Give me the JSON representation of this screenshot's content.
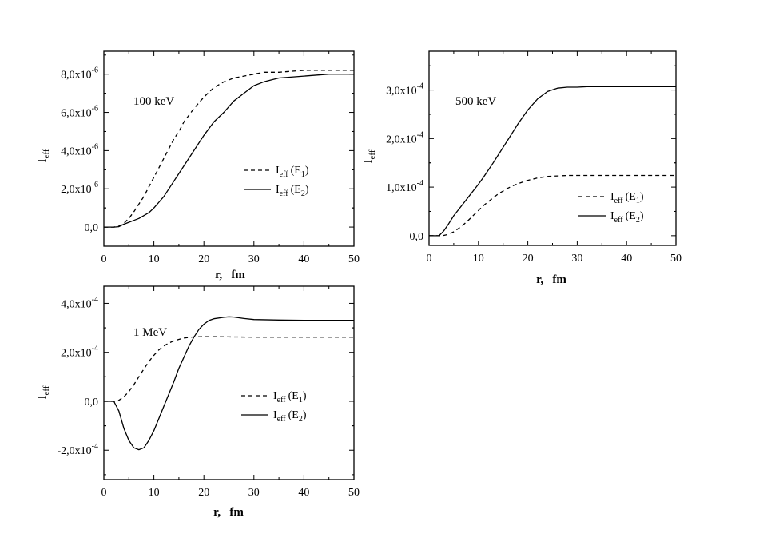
{
  "chart_data": [
    {
      "type": "line",
      "annotation": "100 keV",
      "xlabel": "r,   fm",
      "ylabel": "I",
      "ylabel_sub": "eff",
      "xlim": [
        0,
        50
      ],
      "ylim": [
        -1e-06,
        9.2e-06
      ],
      "xticks": [
        0,
        10,
        20,
        30,
        40,
        50
      ],
      "xtick_labels": [
        "0",
        "10",
        "20",
        "30",
        "40",
        "50"
      ],
      "yticks": [
        0,
        2e-06,
        4e-06,
        6e-06,
        8e-06
      ],
      "ytick_labels": [
        {
          "m": "0,0",
          "e": ""
        },
        {
          "m": "2,0x10",
          "e": "-6"
        },
        {
          "m": "4,0x10",
          "e": "-6"
        },
        {
          "m": "6,0x10",
          "e": "-6"
        },
        {
          "m": "8,0x10",
          "e": "-6"
        }
      ],
      "legend_position": "center-right",
      "series": [
        {
          "label": "I",
          "label_sub": "eff",
          "label_tail": "(E",
          "label_tail_sub": "1",
          "label_end": ")",
          "style": "dashed",
          "x": [
            0,
            2,
            3,
            4,
            5,
            6,
            7,
            8,
            9,
            10,
            11,
            12,
            13,
            14,
            15,
            16,
            18,
            20,
            22,
            24,
            26,
            28,
            30,
            32,
            35,
            40,
            45,
            50
          ],
          "y": [
            0,
            0,
            5e-08,
            2e-07,
            4.5e-07,
            8e-07,
            1.2e-06,
            1.6e-06,
            2.1e-06,
            2.6e-06,
            3.1e-06,
            3.6e-06,
            4.1e-06,
            4.6e-06,
            5e-06,
            5.5e-06,
            6.2e-06,
            6.8e-06,
            7.3e-06,
            7.6e-06,
            7.8e-06,
            7.9e-06,
            8e-06,
            8.1e-06,
            8.1e-06,
            8.2e-06,
            8.2e-06,
            8.2e-06
          ]
        },
        {
          "label": "I",
          "label_sub": "eff",
          "label_tail": "(E",
          "label_tail_sub": "2",
          "label_end": ")",
          "style": "solid",
          "x": [
            0,
            2,
            3,
            4,
            5,
            6,
            7,
            8,
            9,
            10,
            11,
            12,
            13,
            14,
            15,
            16,
            18,
            20,
            22,
            24,
            26,
            28,
            30,
            32,
            35,
            40,
            45,
            50
          ],
          "y": [
            0,
            0,
            2e-08,
            1.5e-07,
            2.5e-07,
            3.5e-07,
            4.5e-07,
            6e-07,
            7.5e-07,
            1e-06,
            1.3e-06,
            1.6e-06,
            2e-06,
            2.4e-06,
            2.8e-06,
            3.2e-06,
            4e-06,
            4.8e-06,
            5.5e-06,
            6e-06,
            6.6e-06,
            7e-06,
            7.4e-06,
            7.6e-06,
            7.8e-06,
            7.9e-06,
            8e-06,
            8e-06
          ]
        }
      ]
    },
    {
      "type": "line",
      "annotation": "500 keV",
      "xlabel": "r,   fm",
      "ylabel": "I",
      "ylabel_sub": "eff",
      "xlim": [
        0,
        50
      ],
      "ylim": [
        -2e-05,
        0.00038
      ],
      "xticks": [
        0,
        10,
        20,
        30,
        40,
        50
      ],
      "xtick_labels": [
        "0",
        "10",
        "20",
        "30",
        "40",
        "50"
      ],
      "yticks": [
        0,
        0.0001,
        0.0002,
        0.0003
      ],
      "ytick_labels": [
        {
          "m": "0,0",
          "e": ""
        },
        {
          "m": "1,0x10",
          "e": "-4"
        },
        {
          "m": "2,0x10",
          "e": "-4"
        },
        {
          "m": "3,0x10",
          "e": "-4"
        }
      ],
      "legend_position": "lower-right",
      "series": [
        {
          "label": "I",
          "label_sub": "eff",
          "label_tail": "(E",
          "label_tail_sub": "1",
          "label_end": ")",
          "style": "dashed",
          "x": [
            0,
            2,
            3,
            4,
            5,
            6,
            7,
            8,
            9,
            10,
            11,
            12,
            13,
            14,
            15,
            16,
            17,
            18,
            20,
            22,
            24,
            26,
            28,
            30,
            35,
            40,
            45,
            50
          ],
          "y": [
            0,
            0,
            5e-07,
            3e-06,
            8e-06,
            1.5e-05,
            2.3e-05,
            3.2e-05,
            4.2e-05,
            5.2e-05,
            6.2e-05,
            7e-05,
            7.8e-05,
            8.6e-05,
            9.2e-05,
            9.8e-05,
            0.000103,
            0.000107,
            0.000114,
            0.000119,
            0.000122,
            0.000123,
            0.000124,
            0.000124,
            0.000124,
            0.000124,
            0.000124,
            0.000124
          ]
        },
        {
          "label": "I",
          "label_sub": "eff",
          "label_tail": "(E",
          "label_tail_sub": "2",
          "label_end": ")",
          "style": "solid",
          "x": [
            0,
            2,
            3,
            4,
            5,
            6,
            7,
            8,
            9,
            10,
            11,
            12,
            13,
            14,
            15,
            16,
            17,
            18,
            20,
            22,
            24,
            26,
            28,
            30,
            32,
            35,
            40,
            45,
            50
          ],
          "y": [
            0,
            0,
            1e-05,
            2.5e-05,
            4.1e-05,
            5.4e-05,
            6.7e-05,
            8e-05,
            9.3e-05,
            0.000106,
            0.00012,
            0.000135,
            0.00015,
            0.000166,
            0.000182,
            0.000198,
            0.000214,
            0.00023,
            0.000259,
            0.000282,
            0.000297,
            0.000304,
            0.000306,
            0.000306,
            0.000307,
            0.000307,
            0.000307,
            0.000307,
            0.000307
          ]
        }
      ]
    },
    {
      "type": "line",
      "annotation": "1 MeV",
      "xlabel": "r,   fm",
      "ylabel": "I",
      "ylabel_sub": "eff",
      "xlim": [
        0,
        50
      ],
      "ylim": [
        -0.00032,
        0.00047
      ],
      "xticks": [
        0,
        10,
        20,
        30,
        40,
        50
      ],
      "xtick_labels": [
        "0",
        "10",
        "20",
        "30",
        "40",
        "50"
      ],
      "yticks": [
        -0.0002,
        0,
        0.0002,
        0.0004
      ],
      "ytick_labels": [
        {
          "m": "-2,0x10",
          "e": "-4"
        },
        {
          "m": "0,0",
          "e": ""
        },
        {
          "m": "2,0x10",
          "e": "-4"
        },
        {
          "m": "4,0x10",
          "e": "-4"
        }
      ],
      "legend_position": "lower-right",
      "series": [
        {
          "label": "I",
          "label_sub": "eff",
          "label_tail": "(E",
          "label_tail_sub": "1",
          "label_end": ")",
          "style": "dashed",
          "x": [
            0,
            2,
            3,
            4,
            5,
            6,
            7,
            8,
            9,
            10,
            11,
            12,
            13,
            14,
            15,
            16,
            17,
            18,
            20,
            22,
            25,
            30,
            35,
            40,
            45,
            50
          ],
          "y": [
            0,
            0,
            4e-06,
            1.8e-05,
            4e-05,
            6.8e-05,
            0.0001,
            0.000132,
            0.000162,
            0.000188,
            0.00021,
            0.000226,
            0.000238,
            0.000247,
            0.000253,
            0.000258,
            0.000261,
            0.000263,
            0.000264,
            0.000264,
            0.000263,
            0.000262,
            0.000262,
            0.000262,
            0.000262,
            0.000262
          ]
        },
        {
          "label": "I",
          "label_sub": "eff",
          "label_tail": "(E",
          "label_tail_sub": "2",
          "label_end": ")",
          "style": "solid",
          "x": [
            0,
            2,
            3,
            4,
            5,
            6,
            7,
            8,
            9,
            10,
            11,
            12,
            13,
            14,
            15,
            16,
            17,
            18,
            19,
            20,
            21,
            22,
            24,
            25,
            26,
            28,
            30,
            35,
            40,
            45,
            50
          ],
          "y": [
            0,
            0,
            -4e-05,
            -0.00011,
            -0.00016,
            -0.00019,
            -0.000198,
            -0.00019,
            -0.00016,
            -0.00012,
            -7e-05,
            -2e-05,
            3e-05,
            8e-05,
            0.000135,
            0.00018,
            0.000225,
            0.000262,
            0.000293,
            0.000315,
            0.00033,
            0.000337,
            0.000343,
            0.000345,
            0.000344,
            0.000338,
            0.000334,
            0.000332,
            0.000331,
            0.000331,
            0.000331
          ]
        }
      ]
    }
  ]
}
